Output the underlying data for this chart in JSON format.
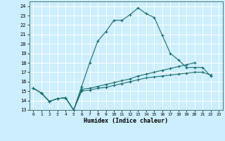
{
  "xlabel": "Humidex (Indice chaleur)",
  "bg_color": "#cceeff",
  "grid_color": "#ffffff",
  "line_color": "#1a6e6e",
  "xlim": [
    -0.5,
    23.5
  ],
  "ylim": [
    13,
    24.5
  ],
  "yticks": [
    13,
    14,
    15,
    16,
    17,
    18,
    19,
    20,
    21,
    22,
    23,
    24
  ],
  "xticks": [
    0,
    1,
    2,
    3,
    4,
    5,
    6,
    7,
    8,
    9,
    10,
    11,
    12,
    13,
    14,
    15,
    16,
    17,
    18,
    19,
    20,
    21,
    22,
    23
  ],
  "series": [
    [
      15.3,
      14.8,
      13.9,
      14.2,
      14.3,
      13.0,
      15.5,
      18.0,
      20.3,
      21.3,
      22.5,
      22.5,
      23.1,
      23.8,
      23.2,
      22.8,
      20.9,
      19.0,
      18.3,
      17.5,
      17.5,
      17.5,
      16.6,
      null
    ],
    [
      15.3,
      14.8,
      13.9,
      14.2,
      14.3,
      13.0,
      15.2,
      15.3,
      15.5,
      15.7,
      15.9,
      16.1,
      16.3,
      16.6,
      16.8,
      17.0,
      17.2,
      17.4,
      17.6,
      17.8,
      18.0,
      null,
      null,
      null
    ],
    [
      15.3,
      14.8,
      13.9,
      14.2,
      14.3,
      13.0,
      15.0,
      15.1,
      15.3,
      15.4,
      15.6,
      15.8,
      16.0,
      16.2,
      16.4,
      16.5,
      16.6,
      16.7,
      16.8,
      16.9,
      17.0,
      17.0,
      16.7,
      null
    ]
  ]
}
